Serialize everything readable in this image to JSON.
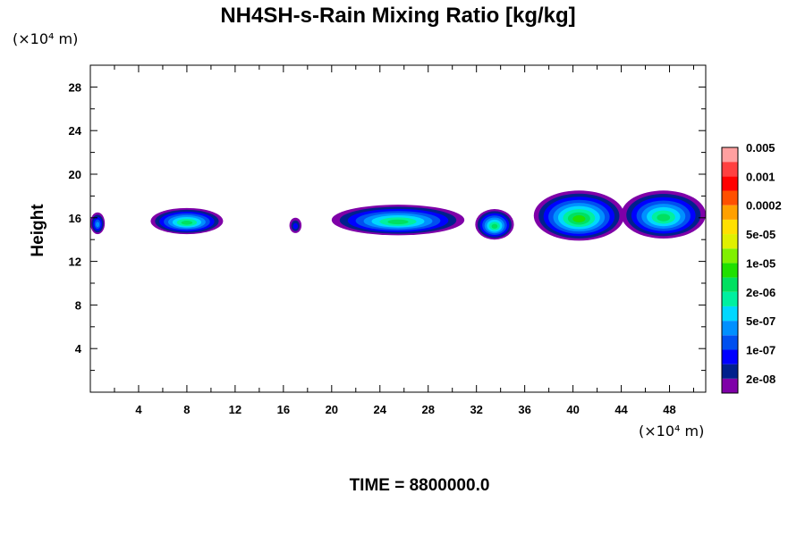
{
  "chart_data": {
    "type": "heatmap",
    "title": "NH4SH-s-Rain Mixing Ratio [kg/kg]",
    "ylabel": "Height",
    "y_unit": "(×10⁴ m)",
    "x_unit": "(×10⁴ m)",
    "xlim": [
      0,
      51
    ],
    "ylim": [
      0,
      30
    ],
    "x_ticks": [
      4,
      8,
      12,
      16,
      20,
      24,
      28,
      32,
      36,
      40,
      44,
      48
    ],
    "y_ticks": [
      4,
      8,
      12,
      16,
      20,
      24,
      28
    ],
    "time_label": "TIME = 8800000.0",
    "colorbar": {
      "colors": [
        "#7f00a8",
        "#00208c",
        "#0000ff",
        "#0050f0",
        "#0090ff",
        "#00d8ff",
        "#00f0a0",
        "#00e060",
        "#20e000",
        "#80f000",
        "#e0f000",
        "#ffe000",
        "#ffa000",
        "#ff5000",
        "#ff0000",
        "#ff4040",
        "#ffa0a0"
      ],
      "labels": [
        "2e-08",
        "1e-07",
        "5e-07",
        "2e-06",
        "1e-05",
        "5e-05",
        "0.0002",
        "0.001",
        "0.005"
      ]
    },
    "cells": [
      {
        "x": 0.6,
        "y": 15.5,
        "w": 1.2,
        "h": 2.0,
        "level": 4
      },
      {
        "x": 8.0,
        "y": 15.7,
        "w": 6.0,
        "h": 2.4,
        "level": 7
      },
      {
        "x": 17.0,
        "y": 15.3,
        "w": 1.0,
        "h": 1.4,
        "level": 2
      },
      {
        "x": 25.5,
        "y": 15.8,
        "w": 11.0,
        "h": 2.8,
        "level": 7
      },
      {
        "x": 33.5,
        "y": 15.4,
        "w": 3.2,
        "h": 2.8,
        "level": 7
      },
      {
        "x": 40.5,
        "y": 16.2,
        "w": 7.5,
        "h": 4.6,
        "level": 8
      },
      {
        "x": 47.5,
        "y": 16.3,
        "w": 7.0,
        "h": 4.4,
        "level": 7
      }
    ]
  }
}
